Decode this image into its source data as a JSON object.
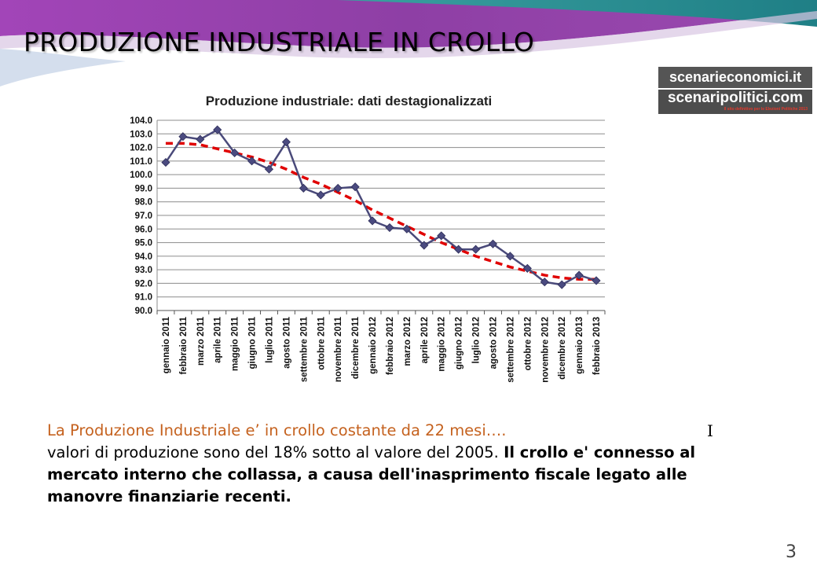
{
  "slide": {
    "title": "PRODUZIONE INDUSTRIALE IN CROLLO",
    "page_number": "3",
    "cursor_glyph": "I"
  },
  "logo": {
    "line1": "scenarieconomici.it",
    "line2": "scenaripolitici.com",
    "tagline": "Il sito definitivo per le Elezioni Politiche 2013"
  },
  "commentary": {
    "orange_text": "La Produzione Industriale e’ in crollo costante da 22 mesi….",
    "normal_text": "valori di produzione sono del 18% sotto al valore del 2005.",
    "bold_text": "Il crollo e' connesso al mercato interno che collassa, a causa dell'inasprimento fiscale legato alle manovre finanziarie recenti."
  },
  "colors": {
    "series_line": "#4a4a7a",
    "trend_line": "#e00000",
    "banner_purple": "#8e3fa5",
    "banner_teal": "#2a8a8e",
    "text_orange": "#c5621f"
  },
  "chart_data": {
    "type": "line",
    "title": "Produzione industriale: dati destagionalizzati",
    "xlabel": "",
    "ylabel": "",
    "ylim": [
      90.0,
      104.0
    ],
    "y_ticks": [
      "90.0",
      "91.0",
      "92.0",
      "93.0",
      "94.0",
      "95.0",
      "96.0",
      "97.0",
      "98.0",
      "99.0",
      "100.0",
      "101.0",
      "102.0",
      "103.0",
      "104.0"
    ],
    "grid": true,
    "legend": "none",
    "categories": [
      "gennaio 2011",
      "febbraio 2011",
      "marzo 2011",
      "aprile 2011",
      "maggio 2011",
      "giugno 2011",
      "luglio 2011",
      "agosto 2011",
      "settembre 2011",
      "ottobre 2011",
      "novembre 2011",
      "dicembre 2011",
      "gennaio 2012",
      "febbraio 2012",
      "marzo 2012",
      "aprile 2012",
      "maggio 2012",
      "giugno 2012",
      "luglio 2012",
      "agosto 2012",
      "settembre 2012",
      "ottobre 2012",
      "novembre 2012",
      "dicembre 2012",
      "gennaio 2013",
      "febbraio 2013"
    ],
    "series": [
      {
        "values": [
          100.9,
          102.8,
          102.6,
          103.3,
          101.6,
          101.0,
          100.4,
          102.4,
          99.0,
          98.5,
          99.0,
          99.1,
          96.6,
          96.1,
          96.0,
          94.8,
          95.5,
          94.5,
          94.5,
          94.9,
          94.0,
          93.1,
          92.1,
          91.9,
          92.6,
          92.2
        ]
      },
      {
        "values": [
          102.3,
          102.3,
          102.2,
          101.9,
          101.6,
          101.3,
          100.9,
          100.4,
          99.8,
          99.3,
          98.7,
          98.1,
          97.4,
          96.8,
          96.2,
          95.6,
          95.0,
          94.5,
          94.0,
          93.6,
          93.2,
          92.9,
          92.6,
          92.4,
          92.3,
          92.3
        ]
      }
    ]
  }
}
